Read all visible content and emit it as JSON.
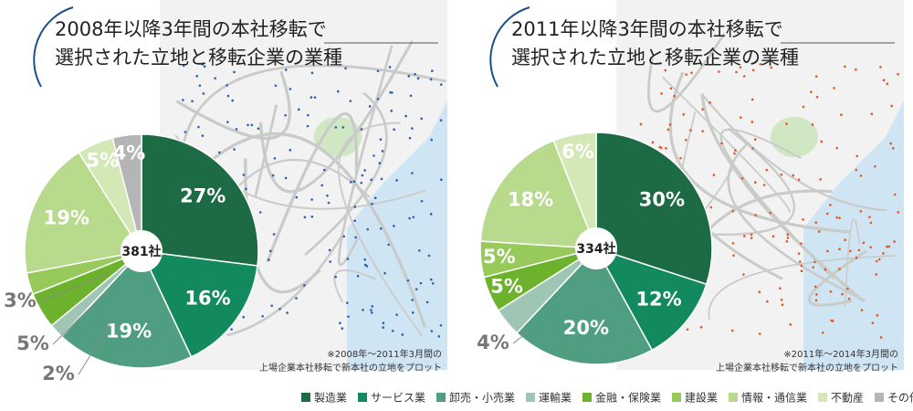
{
  "chart_data": [
    {
      "type": "pie",
      "title": [
        "2008年以降3年間の本社移転で",
        "選択された立地と移転企業の業種"
      ],
      "center_label": "381社",
      "note": [
        "※2008年～2011年3月間の",
        "上場企業本社移転で新本社の立地をプロット"
      ],
      "values": [
        27,
        16,
        19,
        2,
        5,
        3,
        19,
        5,
        4
      ],
      "value_labels": [
        "27%",
        "16%",
        "19%",
        "2%",
        "5%",
        "3%",
        "19%",
        "5%",
        "4%"
      ]
    },
    {
      "type": "pie",
      "title": [
        "2011年以降3年間の本社移転で",
        "選択された立地と移転企業の業種"
      ],
      "center_label": "334社",
      "note": [
        "※2011年～2014年3月間の",
        "上場企業本社移転で新本社の立地をプロット"
      ],
      "values": [
        30,
        12,
        20,
        4,
        5,
        5,
        18,
        6,
        null
      ],
      "value_labels": [
        "30%",
        "12%",
        "20%",
        "4%",
        "5%",
        "5%",
        "18%",
        "6%",
        null
      ]
    }
  ],
  "legend": {
    "categories": [
      "製造業",
      "サービス業",
      "卸売・小売業",
      "運輸業",
      "金融・保険業",
      "建設業",
      "情報・通信業",
      "不動産",
      "その他"
    ],
    "colors": [
      "#1d6b45",
      "#128a5e",
      "#4f9e82",
      "#9fc6b5",
      "#6db22d",
      "#98c95b",
      "#b8da8c",
      "#d3e8b5",
      "#b5b5b5"
    ]
  }
}
